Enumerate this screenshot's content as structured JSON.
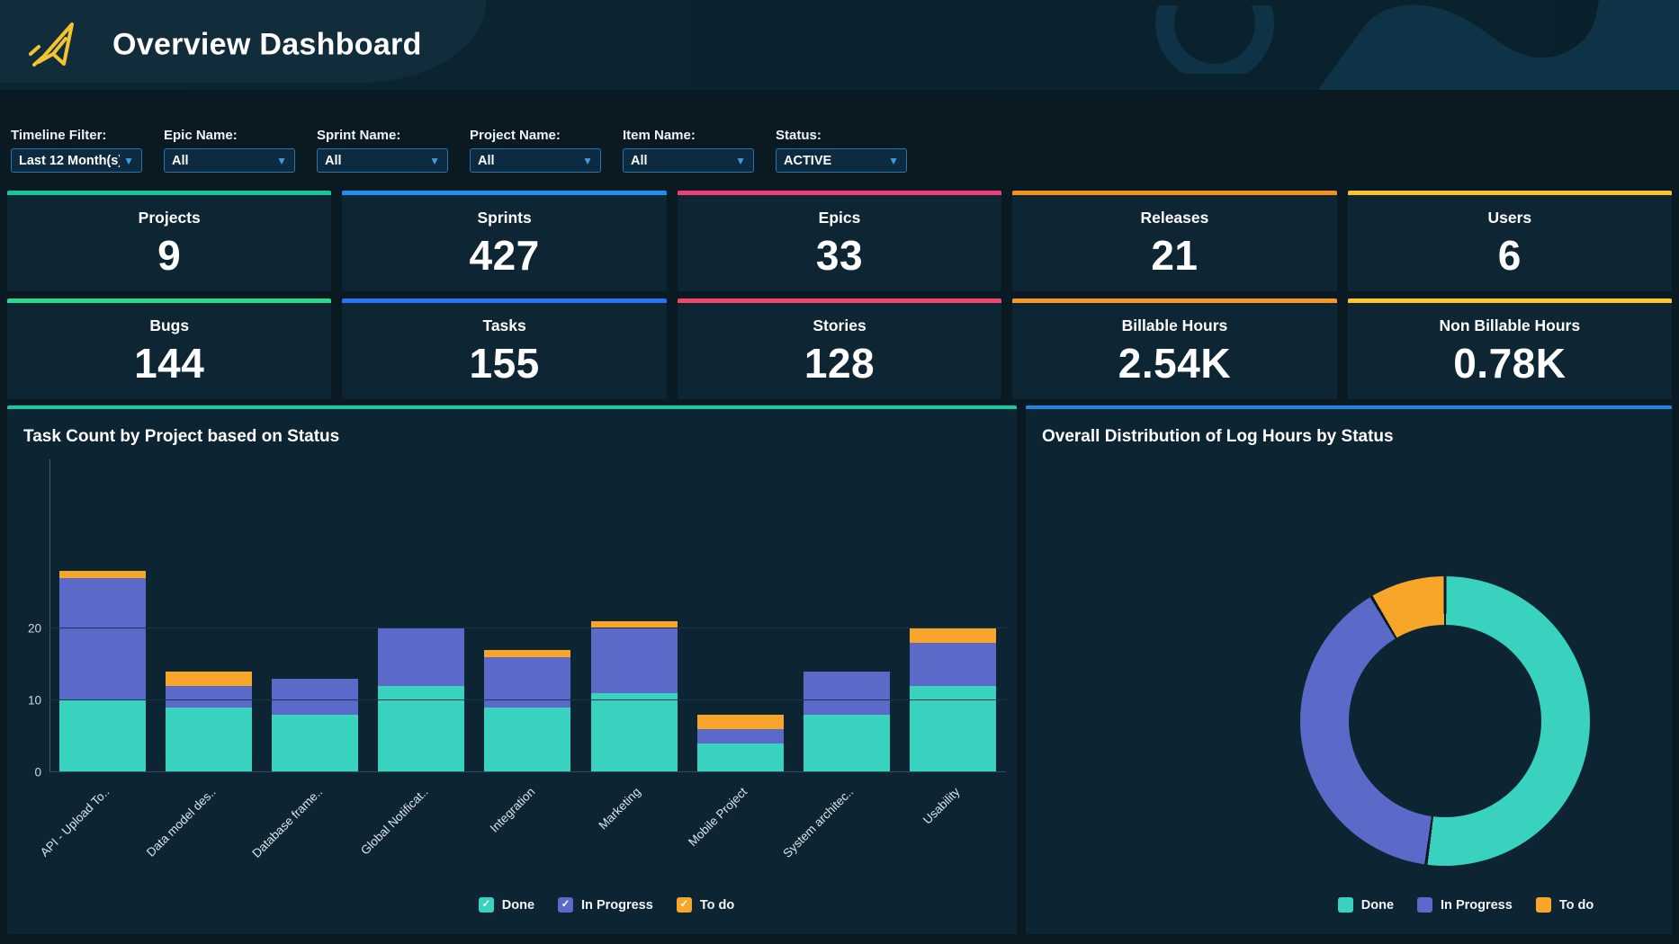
{
  "header": {
    "title": "Overview Dashboard"
  },
  "filters": [
    {
      "label": "Timeline Filter:",
      "value": "Last 12 Month(s)"
    },
    {
      "label": "Epic Name:",
      "value": "All"
    },
    {
      "label": "Sprint Name:",
      "value": "All"
    },
    {
      "label": "Project Name:",
      "value": "All"
    },
    {
      "label": "Item Name:",
      "value": "All"
    },
    {
      "label": "Status:",
      "value": "ACTIVE"
    }
  ],
  "kpi_rows": [
    [
      {
        "label": "Projects",
        "value": "9",
        "accent": "#16c79e"
      },
      {
        "label": "Sprints",
        "value": "427",
        "accent": "#1f8ef1"
      },
      {
        "label": "Epics",
        "value": "33",
        "accent": "#ef3e7b"
      },
      {
        "label": "Releases",
        "value": "21",
        "accent": "#f6911e"
      },
      {
        "label": "Users",
        "value": "6",
        "accent": "#f7c325"
      }
    ],
    [
      {
        "label": "Bugs",
        "value": "144",
        "accent": "#2bd88f"
      },
      {
        "label": "Tasks",
        "value": "155",
        "accent": "#2576f5"
      },
      {
        "label": "Stories",
        "value": "128",
        "accent": "#ef476a"
      },
      {
        "label": "Billable Hours",
        "value": "2.54K",
        "accent": "#f79726"
      },
      {
        "label": "Non Billable Hours",
        "value": "0.78K",
        "accent": "#fbc72d"
      }
    ]
  ],
  "chart_data": [
    {
      "type": "bar",
      "stacked": true,
      "title": "Task Count by Project based on Status",
      "categories": [
        "API - Upload To..",
        "Data model des..",
        "Database frame..",
        "Global Notificat..",
        "Integration",
        "Marketing",
        "Mobile Project",
        "System architec..",
        "Usability"
      ],
      "series": [
        {
          "name": "Done",
          "color": "#38d2be",
          "values": [
            10,
            9,
            8,
            12,
            9,
            11,
            4,
            8,
            12
          ]
        },
        {
          "name": "In Progress",
          "color": "#5b6ac8",
          "values": [
            17,
            3,
            5,
            8,
            7,
            9,
            2,
            6,
            6
          ]
        },
        {
          "name": "To do",
          "color": "#f8a62a",
          "values": [
            1,
            2,
            0,
            0,
            1,
            1,
            2,
            0,
            2
          ]
        }
      ],
      "totals": [
        28,
        14,
        13,
        20,
        17,
        21,
        8,
        14,
        20
      ],
      "xlabel": "",
      "ylabel": "",
      "yticks": [
        0,
        10,
        20
      ],
      "ylim": [
        0,
        44
      ],
      "grid": true,
      "legend_position": "bottom",
      "legend_style": "checkbox"
    },
    {
      "type": "pie",
      "subtype": "donut",
      "title": "Overall Distribution of Log Hours by Status",
      "labels": [
        "Done",
        "In Progress",
        "To do"
      ],
      "values_pct": [
        52.1,
        39.4,
        8.5
      ],
      "colors": [
        "#38d2be",
        "#5b6ac8",
        "#f8a62a"
      ],
      "legend_position": "bottom",
      "legend_style": "square"
    }
  ]
}
